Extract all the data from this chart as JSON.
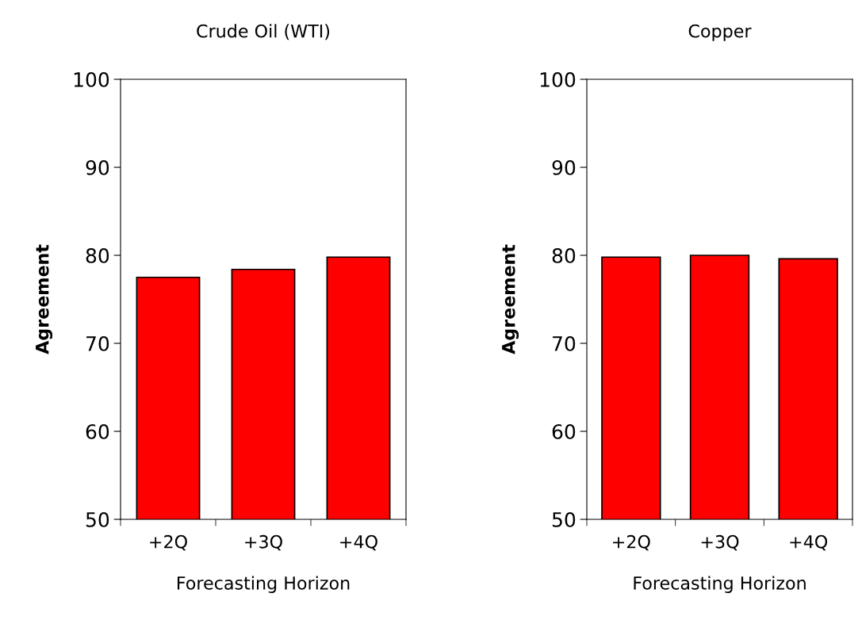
{
  "chart_data": [
    {
      "type": "bar",
      "title": "Crude Oil (WTI)",
      "xlabel": "Forecasting Horizon",
      "ylabel": "Agreement",
      "categories": [
        "+2Q",
        "+3Q",
        "+4Q"
      ],
      "values": [
        77.5,
        78.4,
        79.8
      ],
      "color": "#ff0000",
      "ylim": [
        50,
        100
      ],
      "yticks": [
        50,
        60,
        70,
        80,
        90,
        100
      ],
      "grid": false,
      "legend": false
    },
    {
      "type": "bar",
      "title": "Copper",
      "xlabel": "Forecasting Horizon",
      "ylabel": "Agreement",
      "categories": [
        "+2Q",
        "+3Q",
        "+4Q"
      ],
      "values": [
        79.8,
        80.0,
        79.6
      ],
      "color": "#ff0000",
      "ylim": [
        50,
        100
      ],
      "yticks": [
        50,
        60,
        70,
        80,
        90,
        100
      ],
      "grid": false,
      "legend": false
    }
  ]
}
